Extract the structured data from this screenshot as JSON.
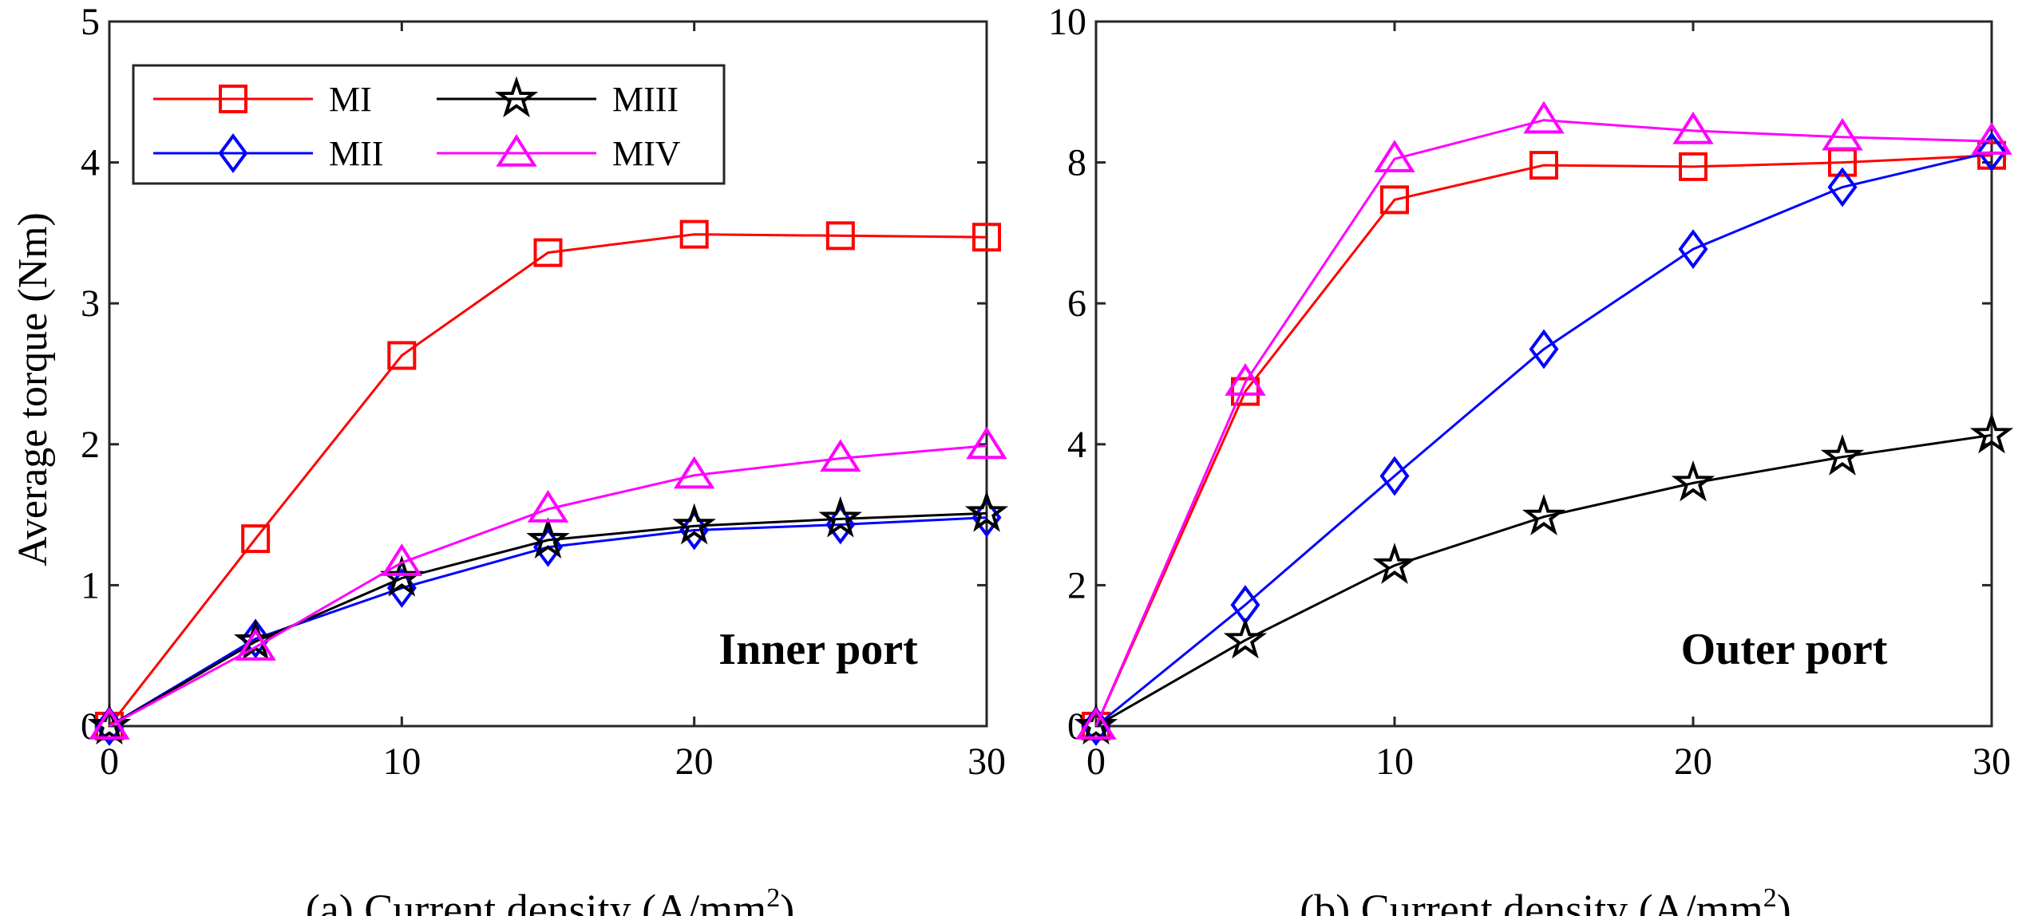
{
  "chart_data": [
    {
      "type": "line",
      "panel": "a",
      "title": "",
      "xlabel": "(a) Current density (A/mm",
      "xlabel_sup": "2",
      "xlabel_close": ")",
      "ylabel": "Average torque (Nm)",
      "annotation": "Inner port",
      "xlim": [
        0,
        30
      ],
      "ylim": [
        0,
        5
      ],
      "xticks": [
        "0",
        "10",
        "20",
        "30"
      ],
      "yticks": [
        "0",
        "1",
        "2",
        "3",
        "4",
        "5"
      ],
      "x": [
        0,
        5,
        10,
        15,
        20,
        25,
        30
      ],
      "legend": "top-left",
      "series": [
        {
          "name": "MI",
          "color": "#ff0000",
          "marker": "square",
          "values": [
            0,
            1.33,
            2.63,
            3.36,
            3.49,
            3.48,
            3.47
          ]
        },
        {
          "name": "MII",
          "color": "#0000ff",
          "marker": "diamond",
          "values": [
            0,
            0.62,
            0.98,
            1.27,
            1.39,
            1.43,
            1.48
          ]
        },
        {
          "name": "MIII",
          "color": "#000000",
          "marker": "star",
          "values": [
            0,
            0.6,
            1.05,
            1.32,
            1.42,
            1.47,
            1.51
          ]
        },
        {
          "name": "MIV",
          "color": "#ff00ff",
          "marker": "triangle",
          "values": [
            0,
            0.56,
            1.16,
            1.54,
            1.78,
            1.9,
            1.99
          ]
        }
      ]
    },
    {
      "type": "line",
      "panel": "b",
      "title": "",
      "xlabel": "(b) Current density (A/mm",
      "xlabel_sup": "2",
      "xlabel_close": ")",
      "ylabel": "",
      "annotation": "Outer port",
      "xlim": [
        0,
        30
      ],
      "ylim": [
        0,
        10
      ],
      "xticks": [
        "0",
        "10",
        "20",
        "30"
      ],
      "yticks": [
        "0",
        "2",
        "4",
        "6",
        "8",
        "10"
      ],
      "x": [
        0,
        5,
        10,
        15,
        20,
        25,
        30
      ],
      "series": [
        {
          "name": "MI",
          "color": "#ff0000",
          "marker": "square",
          "values": [
            0,
            4.75,
            7.47,
            7.96,
            7.94,
            8.0,
            8.1
          ]
        },
        {
          "name": "MII",
          "color": "#0000ff",
          "marker": "diamond",
          "values": [
            0,
            1.72,
            3.55,
            5.35,
            6.77,
            7.65,
            8.15
          ]
        },
        {
          "name": "MIII",
          "color": "#000000",
          "marker": "star",
          "values": [
            0,
            1.22,
            2.28,
            2.97,
            3.45,
            3.82,
            4.13
          ]
        },
        {
          "name": "MIV",
          "color": "#ff00ff",
          "marker": "triangle",
          "values": [
            0,
            4.88,
            8.05,
            8.6,
            8.45,
            8.36,
            8.3
          ]
        }
      ]
    }
  ]
}
